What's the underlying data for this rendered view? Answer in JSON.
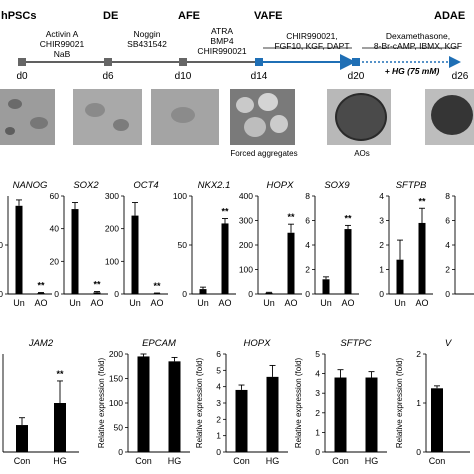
{
  "timeline": {
    "stages": [
      "hPSCs",
      "DE",
      "AFE",
      "VAFE",
      "ADAE"
    ],
    "days": [
      "d0",
      "d6",
      "d10",
      "d14",
      "d20",
      "d26"
    ],
    "treatments": [
      "Activin A\nCHIR99021\nNaB",
      "Noggin\nSB431542",
      "ATRA\nBMP4\nCHIR990021",
      "CHIR990021,\nFGF10, KGF, DAPT",
      "Dexamethasone,\n8-Br-cAMP, IBMX, KGF"
    ],
    "hg_label": "+ HG (75 mM)",
    "colors": {
      "line": "#000000",
      "blue": "#1f6fb5",
      "bar": "#000000"
    }
  },
  "micrographs": {
    "captions": [
      "Forced aggregates",
      "AOs"
    ]
  },
  "row1": {
    "x_categories": [
      "Un",
      "AO"
    ],
    "sig_marker": "**",
    "panels": [
      {
        "gene": "NANOG",
        "ticks": [
          "0",
          "50"
        ],
        "values": [
          90,
          1
        ],
        "errors": [
          6,
          0.5
        ],
        "ylim": [
          0,
          100
        ],
        "sig": "AO"
      },
      {
        "gene": "SOX2",
        "ticks": [
          "0",
          "20",
          "40",
          "60"
        ],
        "values": [
          52,
          1
        ],
        "errors": [
          4,
          0.5
        ],
        "ylim": [
          0,
          60
        ],
        "sig": "AO"
      },
      {
        "gene": "OCT4",
        "ticks": [
          "0",
          "100",
          "200",
          "300"
        ],
        "values": [
          240,
          2
        ],
        "errors": [
          40,
          1
        ],
        "ylim": [
          0,
          300
        ],
        "sig": "AO"
      },
      {
        "gene": "NKX2.1",
        "ticks": [
          "0",
          "50",
          "100"
        ],
        "values": [
          5,
          72
        ],
        "errors": [
          2,
          5
        ],
        "ylim": [
          0,
          100
        ],
        "sig": "AO"
      },
      {
        "gene": "HOPX",
        "ticks": [
          "0",
          "100",
          "200",
          "300",
          "400"
        ],
        "values": [
          5,
          250
        ],
        "errors": [
          2,
          35
        ],
        "ylim": [
          0,
          400
        ],
        "sig": "AO"
      },
      {
        "gene": "SOX9",
        "ticks": [
          "0",
          "2",
          "4",
          "6",
          "8"
        ],
        "values": [
          1.2,
          5.3
        ],
        "errors": [
          0.2,
          0.3
        ],
        "ylim": [
          0,
          8
        ],
        "sig": "AO"
      },
      {
        "gene": "SFTPB",
        "ticks": [
          "0",
          "1",
          "2",
          "3",
          "4"
        ],
        "values": [
          1.4,
          2.9
        ],
        "errors": [
          0.8,
          0.6
        ],
        "ylim": [
          0,
          4
        ],
        "sig": "AO"
      },
      {
        "gene": "",
        "ticks": [
          "0",
          "2",
          "4",
          "6",
          "8"
        ],
        "values": [],
        "errors": [],
        "ylim": [
          0,
          8
        ],
        "sig": ""
      }
    ]
  },
  "row2": {
    "x_categories": [
      "Con",
      "HG"
    ],
    "ylabel": "Relative expression (fold)",
    "sig_marker": "**",
    "panels": [
      {
        "gene": "JAM2",
        "ticks": [],
        "values": [
          0.55,
          1.0
        ],
        "errors": [
          0.15,
          0.45
        ],
        "ylim": [
          0,
          2
        ],
        "sig": "HG"
      },
      {
        "gene": "EPCAM",
        "ticks": [
          "0",
          "50",
          "100",
          "150",
          "200"
        ],
        "values": [
          195,
          185
        ],
        "errors": [
          5,
          8
        ],
        "ylim": [
          0,
          200
        ],
        "sig": ""
      },
      {
        "gene": "HOPX",
        "ticks": [
          "0",
          "1",
          "2",
          "3",
          "4",
          "5",
          "6"
        ],
        "values": [
          3.8,
          4.6
        ],
        "errors": [
          0.3,
          0.7
        ],
        "ylim": [
          0,
          6
        ],
        "sig": ""
      },
      {
        "gene": "SFTPC",
        "ticks": [
          "0",
          "1",
          "2",
          "3",
          "4",
          "5"
        ],
        "values": [
          3.8,
          3.8
        ],
        "errors": [
          0.4,
          0.3
        ],
        "ylim": [
          0,
          5
        ],
        "sig": ""
      },
      {
        "gene": "V",
        "ticks": [
          "0",
          "1",
          "2"
        ],
        "values": [
          1.3
        ],
        "errors": [
          0.05
        ],
        "ylim": [
          0,
          2
        ],
        "sig": ""
      }
    ]
  }
}
